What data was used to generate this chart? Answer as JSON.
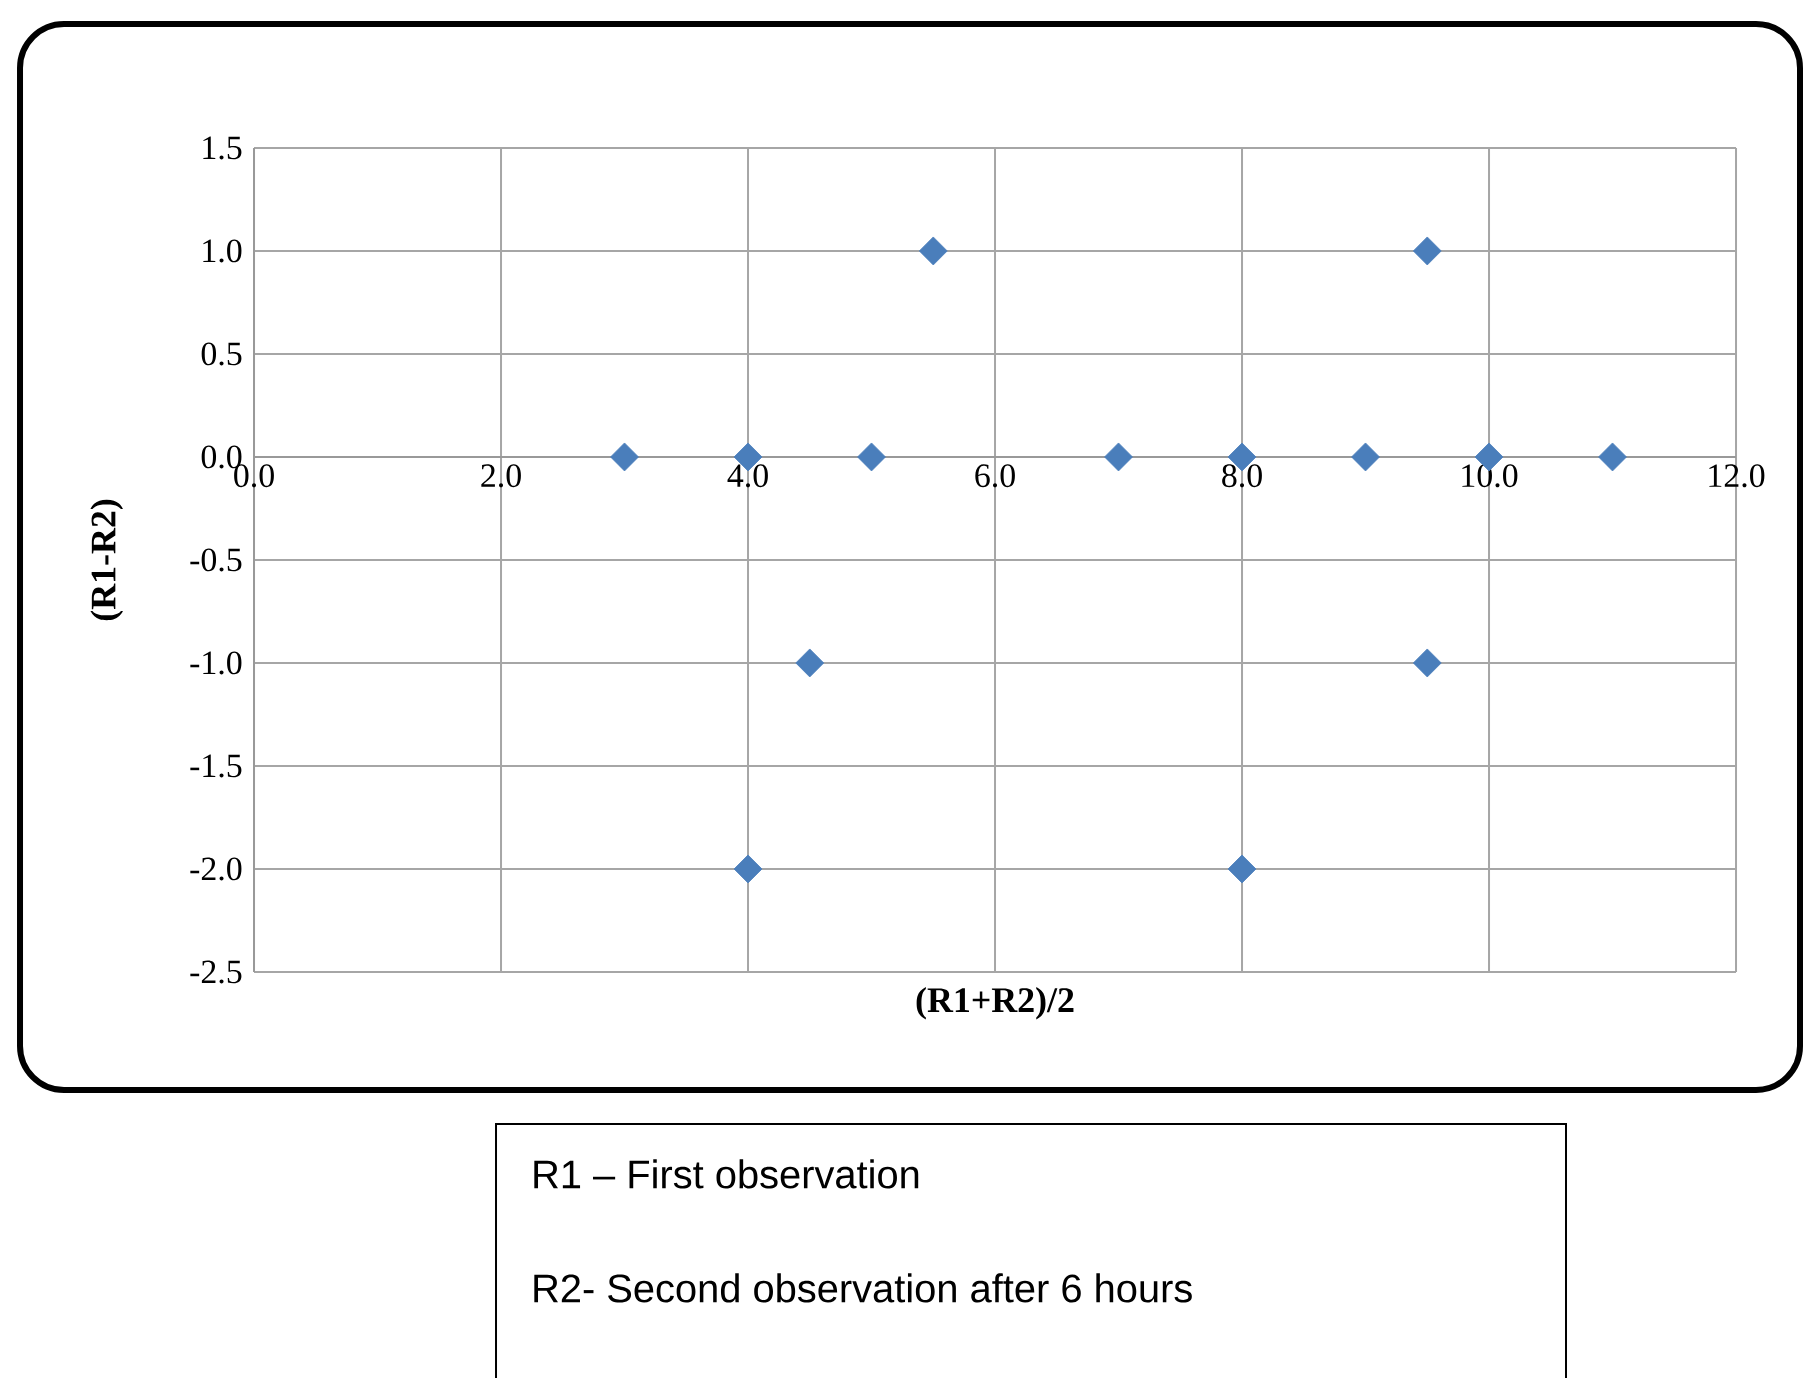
{
  "chart_data": {
    "type": "scatter",
    "xlabel": "(R1+R2)/2",
    "ylabel": "(R1-R2)",
    "x": [
      3,
      4,
      4.5,
      5,
      5.5,
      7,
      8,
      8,
      4,
      9,
      9.5,
      9.5,
      10,
      11
    ],
    "values": [
      0,
      0,
      -1,
      0,
      1,
      0,
      0,
      -2,
      -2,
      0,
      1,
      -1,
      0,
      0
    ],
    "color": "#4a7ebb",
    "marker": "diamond",
    "grid": true,
    "xlim": [
      0,
      12
    ],
    "ylim": [
      -2.5,
      1.5
    ],
    "xticks": [
      {
        "value": 0,
        "label": "0.0"
      },
      {
        "value": 2,
        "label": "2.0"
      },
      {
        "value": 4,
        "label": "4.0"
      },
      {
        "value": 6,
        "label": "6.0"
      },
      {
        "value": 8,
        "label": "8.0"
      },
      {
        "value": 10,
        "label": "10.0"
      },
      {
        "value": 12,
        "label": "12.0"
      }
    ],
    "yticks": [
      {
        "value": -2.5,
        "label": "-2.5"
      },
      {
        "value": -2,
        "label": "-2.0"
      },
      {
        "value": -1.5,
        "label": "-1.5"
      },
      {
        "value": -1,
        "label": "-1.0"
      },
      {
        "value": -0.5,
        "label": "-0.5"
      },
      {
        "value": 0,
        "label": "0.0"
      },
      {
        "value": 0.5,
        "label": "0.5"
      },
      {
        "value": 1,
        "label": "1.0"
      },
      {
        "value": 1.5,
        "label": "1.5"
      }
    ],
    "annotations": [
      "R1 – First observation",
      "R2- Second observation after 6 hours"
    ]
  }
}
